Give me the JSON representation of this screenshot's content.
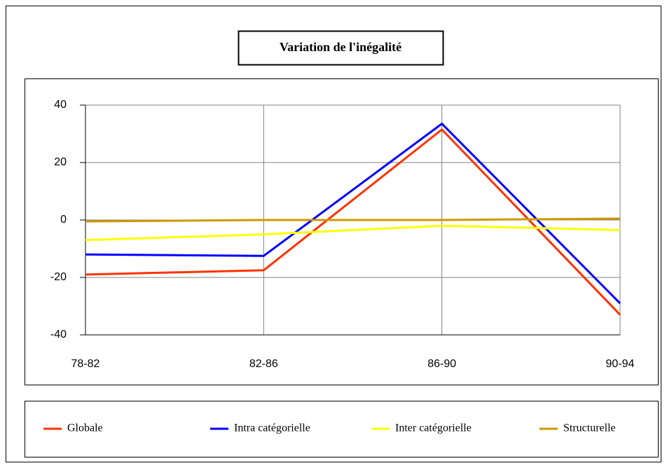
{
  "chart_data": {
    "type": "line",
    "title": "Variation de l'inégalité",
    "categories": [
      "78-82",
      "82-86",
      "86-90",
      "90-94"
    ],
    "series": [
      {
        "name": "Globale",
        "color": "#ff3300",
        "values": [
          -19,
          -17.5,
          31.5,
          -33
        ]
      },
      {
        "name": "Intra catégorielle",
        "color": "#0000ff",
        "values": [
          -12,
          -12.5,
          33.5,
          -29
        ]
      },
      {
        "name": "Inter catégorielle",
        "color": "#ffff00",
        "values": [
          -7,
          -5,
          -2,
          -3.5
        ]
      },
      {
        "name": "Structurelle",
        "color": "#cc9900",
        "values": [
          -0.5,
          0,
          0,
          0.5
        ]
      }
    ],
    "ylim": [
      -40,
      40
    ],
    "yticks": [
      -40,
      -20,
      0,
      20,
      40
    ],
    "grid": true,
    "legend": "bottom"
  }
}
